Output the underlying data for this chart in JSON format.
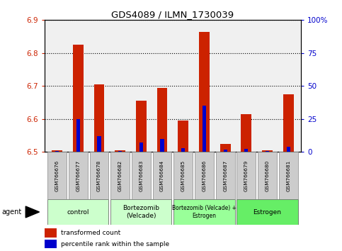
{
  "title": "GDS4089 / ILMN_1730039",
  "samples": [
    "GSM766676",
    "GSM766677",
    "GSM766678",
    "GSM766682",
    "GSM766683",
    "GSM766684",
    "GSM766685",
    "GSM766686",
    "GSM766687",
    "GSM766679",
    "GSM766680",
    "GSM766681"
  ],
  "red_values": [
    6.505,
    6.825,
    6.705,
    6.505,
    6.655,
    6.695,
    6.595,
    6.865,
    6.525,
    6.615,
    6.505,
    6.675
  ],
  "blue_values": [
    0.5,
    25.0,
    12.0,
    0.5,
    7.0,
    10.0,
    3.0,
    35.0,
    1.5,
    2.0,
    0.5,
    4.0
  ],
  "baseline": 6.5,
  "ylim_left": [
    6.5,
    6.9
  ],
  "ylim_right": [
    0,
    100
  ],
  "yticks_left": [
    6.5,
    6.6,
    6.7,
    6.8,
    6.9
  ],
  "yticks_right": [
    0,
    25,
    50,
    75,
    100
  ],
  "ytick_labels_right": [
    "0",
    "25",
    "50",
    "75",
    "100%"
  ],
  "groups": [
    {
      "label": "control",
      "start": 0,
      "end": 3
    },
    {
      "label": "Bortezomib\n(Velcade)",
      "start": 3,
      "end": 6
    },
    {
      "label": "Bortezomib (Velcade) +\nEstrogen",
      "start": 6,
      "end": 9
    },
    {
      "label": "Estrogen",
      "start": 9,
      "end": 12
    }
  ],
  "group_colors": [
    "#ccffcc",
    "#ccffcc",
    "#99ff99",
    "#66ee66"
  ],
  "bar_width": 0.5,
  "bar_color_red": "#cc2200",
  "bar_color_blue": "#0000cc",
  "plot_bg_color": "#f0f0f0",
  "left_tick_color": "#cc2200",
  "right_tick_color": "#0000cc",
  "agent_label": "agent",
  "legend_red": "transformed count",
  "legend_blue": "percentile rank within the sample"
}
